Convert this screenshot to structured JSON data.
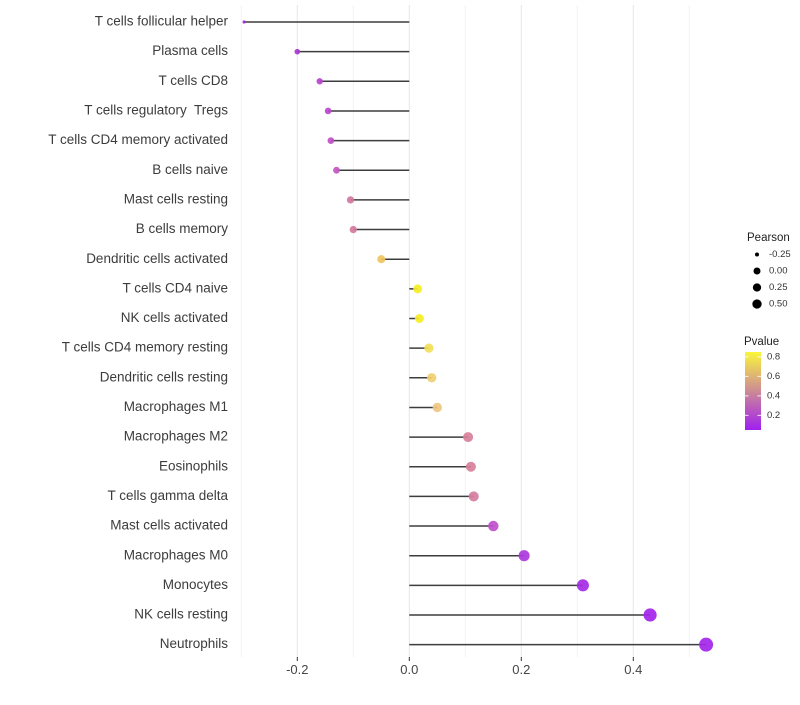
{
  "chart_data": {
    "type": "lollipop",
    "title": "",
    "xlabel": "",
    "ylabel": "",
    "x_ticks": [
      "-0.2",
      "0.0",
      "0.2",
      "0.4"
    ],
    "x_tick_values": [
      -0.2,
      0.0,
      0.2,
      0.4
    ],
    "x_minor_tick_values": [
      -0.3,
      -0.1,
      0.1,
      0.3,
      0.5
    ],
    "xlim": [
      -0.315,
      0.574
    ],
    "grid": "on",
    "categories": [
      "T cells follicular helper",
      "Plasma cells",
      "T cells CD8",
      "T cells regulatory  Tregs",
      "T cells CD4 memory activated",
      "B cells naive",
      "Mast cells resting",
      "B cells memory",
      "Dendritic cells activated",
      "T cells CD4 naive",
      "NK cells activated",
      "T cells CD4 memory resting",
      "Dendritic cells resting",
      "Macrophages M1",
      "Macrophages M2",
      "Eosinophils",
      "T cells gamma delta",
      "Mast cells activated",
      "Macrophages M0",
      "Monocytes",
      "NK cells resting",
      "Neutrophils"
    ],
    "series": [
      {
        "name": "Pearson correlation",
        "values": [
          -0.295,
          -0.2,
          -0.16,
          -0.145,
          -0.14,
          -0.13,
          -0.105,
          -0.1,
          -0.05,
          0.015,
          0.018,
          0.035,
          0.04,
          0.05,
          0.105,
          0.11,
          0.115,
          0.15,
          0.205,
          0.31,
          0.43,
          0.53
        ]
      }
    ],
    "point_colors": [
      "#9930D8",
      "#A836D4",
      "#B643CE",
      "#BA46CE",
      "#C04FC8",
      "#C457C2",
      "#D4779F",
      "#D47A9E",
      "#EEC45E",
      "#F5EE25",
      "#F5EE25",
      "#F2DF58",
      "#F0D06E",
      "#EFC67E",
      "#D8809C",
      "#D8809C",
      "#D67DA0",
      "#BF50CC",
      "#AC38DE",
      "#A52BE6",
      "#A324EC",
      "#A426EC"
    ],
    "stem_color": "#3D3D3D",
    "gridline_major_color": "#E8E8E8",
    "gridline_minor_color": "#F3F3F3",
    "axis_text_color": "#3C3C3C",
    "legend_position": "right",
    "size_legend": {
      "title": "Pearson",
      "labels": [
        "-0.25",
        "0.00",
        "0.25",
        "0.50"
      ],
      "values": [
        -0.25,
        0.0,
        0.25,
        0.5
      ],
      "dot_color": "#000000"
    },
    "color_legend": {
      "title": "Pvalue",
      "labels": [
        "0.8",
        "0.6",
        "0.4",
        "0.2"
      ],
      "label_values": [
        0.8,
        0.6,
        0.4,
        0.2
      ],
      "range": [
        0.05,
        0.85
      ],
      "top_color": "#F9F63A",
      "bottom_color": "#A01FF0"
    }
  }
}
